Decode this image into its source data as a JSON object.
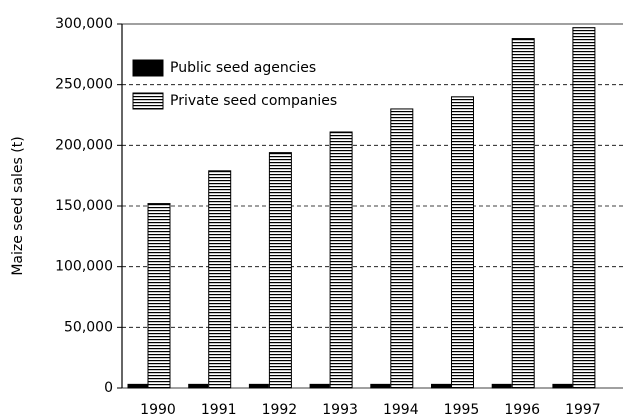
{
  "chart_data": {
    "type": "bar",
    "y_label": "Maize seed sales (t)",
    "categories": [
      "1990",
      "1991",
      "1992",
      "1993",
      "1994",
      "1995",
      "1996",
      "1997"
    ],
    "series": [
      {
        "name": "Public seed agencies",
        "color": "#000000",
        "pattern": "solid",
        "values": [
          3000,
          3000,
          3000,
          3000,
          3000,
          3000,
          3000,
          3000
        ]
      },
      {
        "name": "Private seed companies",
        "color": "#000000",
        "pattern": "horizontal-stripes",
        "values": [
          152000,
          179000,
          194000,
          211000,
          230000,
          240000,
          288000,
          297000
        ]
      }
    ],
    "ylim": [
      0,
      300000
    ],
    "yticks": [
      0,
      {
        "value": 50000,
        "label": "50,000"
      },
      {
        "value": 100000,
        "label": "100,000"
      },
      {
        "value": 150000,
        "label": "150,000"
      },
      {
        "value": 200000,
        "label": "200,000"
      },
      {
        "value": 250000,
        "label": "250,000"
      },
      {
        "value": 300000,
        "label": "300,000"
      }
    ],
    "grid": true,
    "legend": "upper left"
  }
}
